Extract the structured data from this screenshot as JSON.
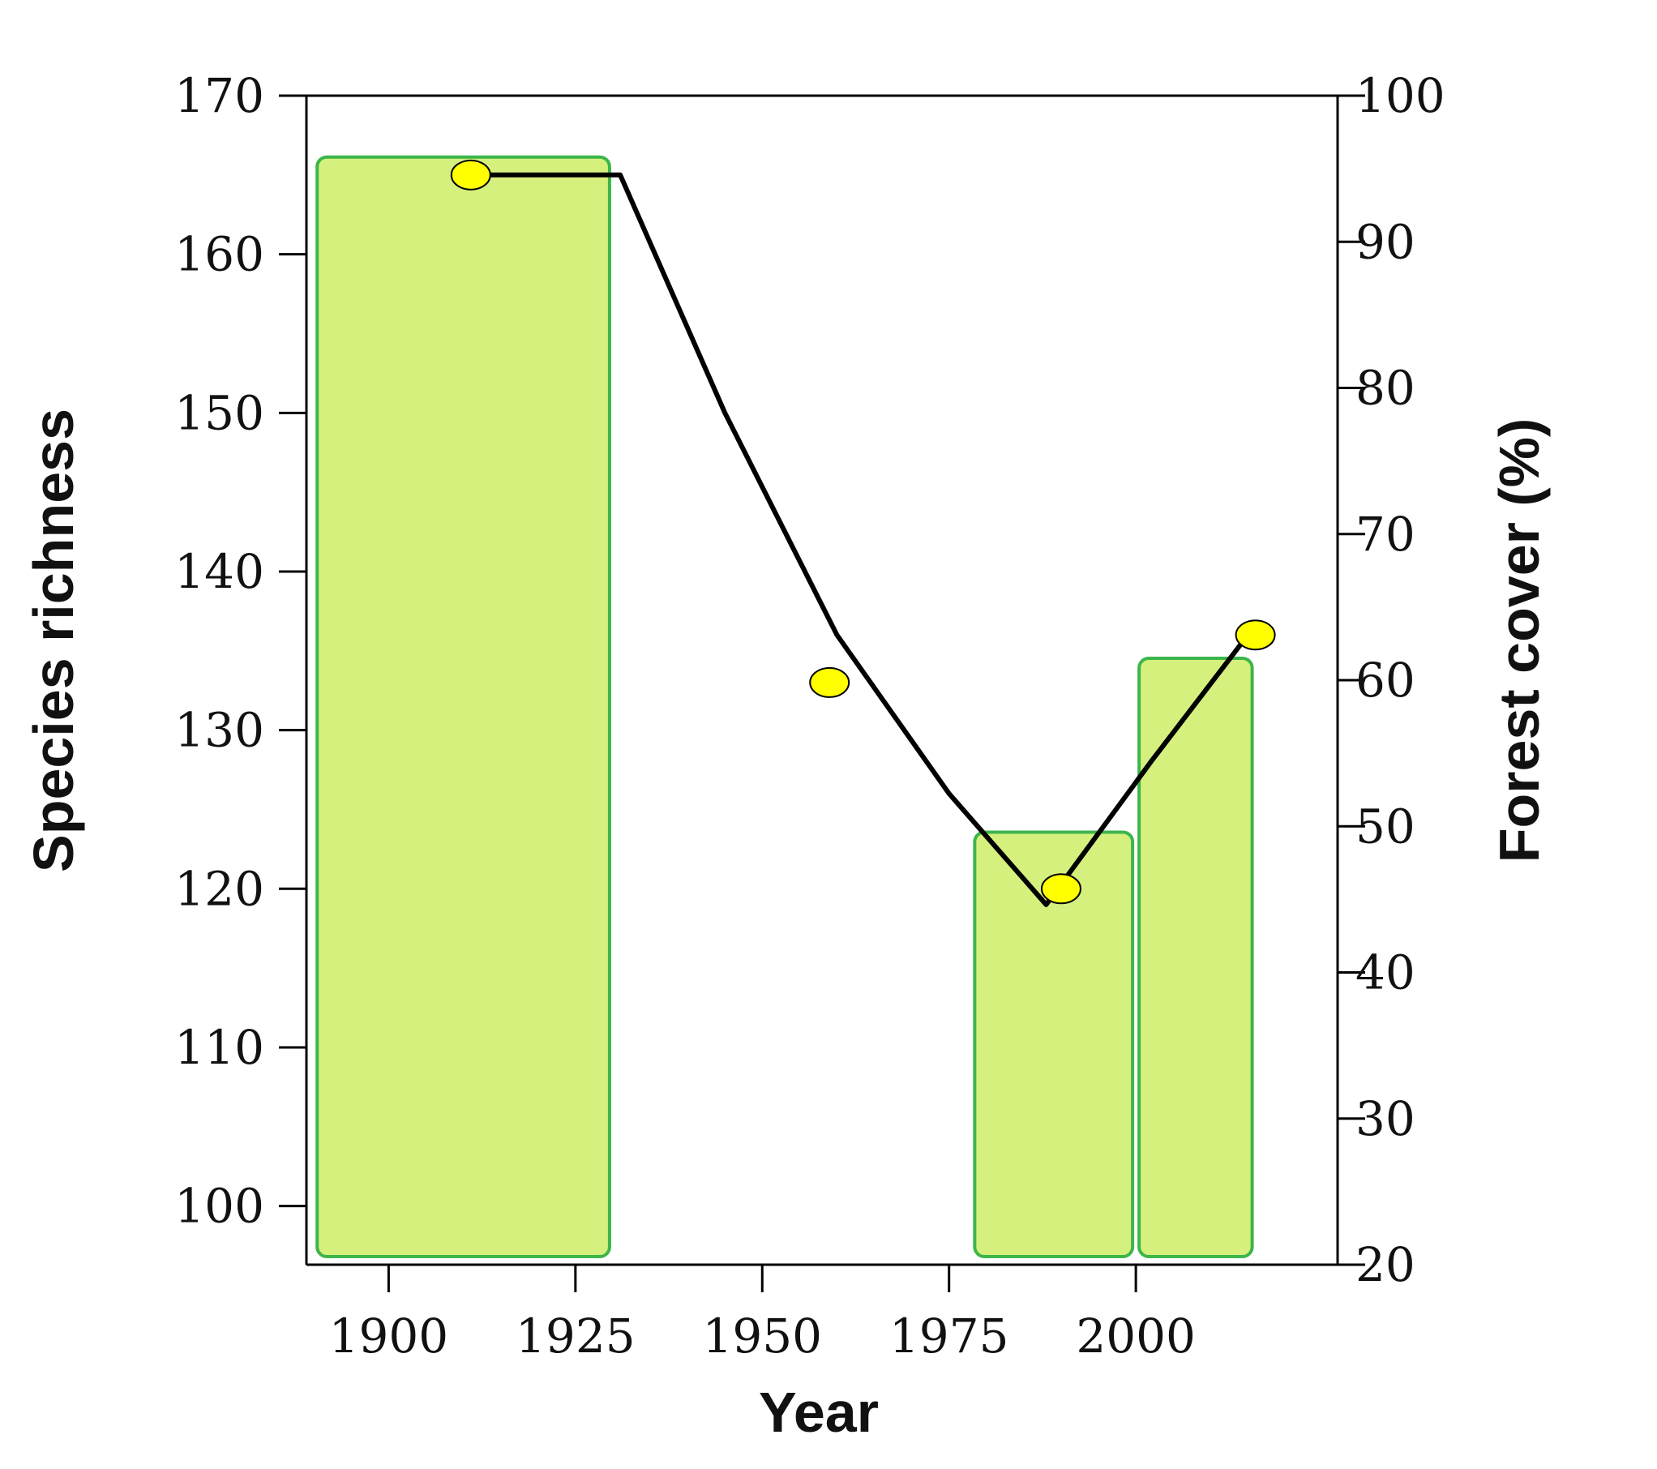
{
  "chart_data": {
    "type": "bar+line",
    "xlabel": "Year",
    "ylabel_left": "Species richness",
    "ylabel_right": "Forest cover (%)",
    "x_ticks": [
      1900,
      1925,
      1950,
      1975,
      2000
    ],
    "xlim": [
      1889,
      2027
    ],
    "left_ticks": [
      100,
      110,
      120,
      130,
      140,
      150,
      160,
      170
    ],
    "left_ylim": [
      96.3,
      170
    ],
    "right_ticks": [
      20,
      30,
      40,
      50,
      60,
      70,
      80,
      90,
      100
    ],
    "right_ylim": [
      20,
      100
    ],
    "bars": [
      {
        "x_start": 1890,
        "x_end": 1930,
        "forest_cover": 95.8
      },
      {
        "x_start": 1978,
        "x_end": 2000,
        "forest_cover": 49.6
      },
      {
        "x_start": 2000,
        "x_end": 2016,
        "forest_cover": 61.5
      }
    ],
    "bar_fill": "#d6f07e",
    "bar_stroke": "#3cb64a",
    "richness_points": [
      {
        "x": 1911,
        "y": 165
      },
      {
        "x": 1959,
        "y": 133
      },
      {
        "x": 1990,
        "y": 120
      },
      {
        "x": 2016,
        "y": 136
      }
    ],
    "point_color": "#ffff00",
    "trend_line": [
      {
        "x": 1911,
        "y": 165
      },
      {
        "x": 1931,
        "y": 165
      },
      {
        "x": 1945,
        "y": 150
      },
      {
        "x": 1960,
        "y": 136
      },
      {
        "x": 1975,
        "y": 126
      },
      {
        "x": 1988,
        "y": 119
      },
      {
        "x": 2002,
        "y": 128
      },
      {
        "x": 2015,
        "y": 136
      }
    ],
    "line_color": "#000000"
  }
}
